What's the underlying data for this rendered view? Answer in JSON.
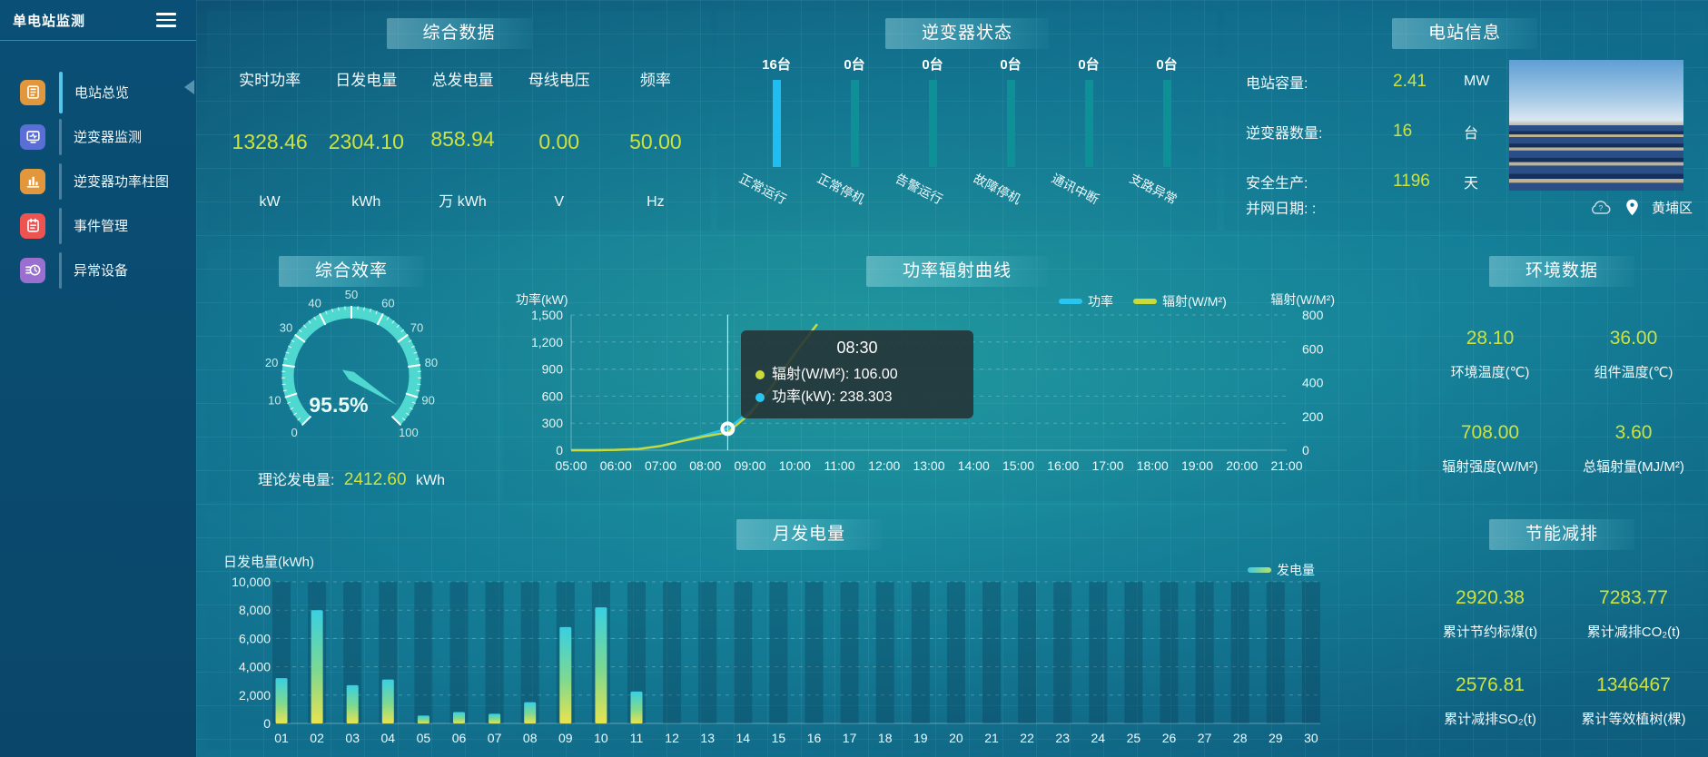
{
  "app": {
    "title": "单电站监测"
  },
  "sidebar": {
    "items": [
      {
        "label": "电站总览",
        "icon": "station-overview-icon",
        "color": "#e2973c",
        "active": true
      },
      {
        "label": "逆变器监测",
        "icon": "inverter-monitor-icon",
        "color": "#5a6fd6",
        "active": false
      },
      {
        "label": "逆变器功率柱图",
        "icon": "inverter-power-bars-icon",
        "color": "#e2973c",
        "active": false
      },
      {
        "label": "事件管理",
        "icon": "event-management-icon",
        "color": "#ef5350",
        "active": false
      },
      {
        "label": "异常设备",
        "icon": "abnormal-device-icon",
        "color": "#9b6fd0",
        "active": false
      }
    ]
  },
  "panels": {
    "summary": {
      "title": "综合数据",
      "metrics": [
        {
          "label": "实时功率",
          "value": "1328.46",
          "unit": "kW"
        },
        {
          "label": "日发电量",
          "value": "2304.10",
          "unit": "kWh"
        },
        {
          "label": "总发电量",
          "value": "858.94",
          "unit": "万 kWh"
        },
        {
          "label": "母线电压",
          "value": "0.00",
          "unit": "V"
        },
        {
          "label": "频率",
          "value": "50.00",
          "unit": "Hz"
        }
      ]
    },
    "inverter_status": {
      "title": "逆变器状态",
      "unit": "台",
      "items": [
        {
          "count": "16台",
          "label": "正常运行",
          "highlight": true
        },
        {
          "count": "0台",
          "label": "正常停机",
          "highlight": false
        },
        {
          "count": "0台",
          "label": "告警运行",
          "highlight": false
        },
        {
          "count": "0台",
          "label": "故障停机",
          "highlight": false
        },
        {
          "count": "0台",
          "label": "通讯中断",
          "highlight": false
        },
        {
          "count": "0台",
          "label": "支路异常",
          "highlight": false
        }
      ]
    },
    "station_info": {
      "title": "电站信息",
      "rows": [
        {
          "label": "电站容量:",
          "value": "2.41",
          "unit": "MW"
        },
        {
          "label": "逆变器数量:",
          "value": "16",
          "unit": "台"
        },
        {
          "label": "安全生产:",
          "value": "1196",
          "unit": "天"
        }
      ],
      "grid_date_label": "并网日期:  :",
      "location": "黄埔区"
    },
    "efficiency": {
      "title": "综合效率",
      "footer": {
        "label": "理论发电量:",
        "value": "2412.60",
        "unit": "kWh"
      }
    },
    "power_radiation": {
      "title": "功率辐射曲线",
      "ylabel_left": "功率(kW)",
      "ylabel_right": "辐射(W/M²)"
    },
    "environment": {
      "title": "环境数据",
      "metrics": [
        {
          "value": "28.10",
          "label": "环境温度(℃)"
        },
        {
          "value": "36.00",
          "label": "组件温度(℃)"
        },
        {
          "value": "708.00",
          "label": "辐射强度(W/M²)"
        },
        {
          "value": "3.60",
          "label": "总辐射量(MJ/M²)"
        }
      ]
    },
    "monthly_energy": {
      "title": "月发电量",
      "ylabel": "日发电量(kWh)",
      "legend": "发电量"
    },
    "energy_saving": {
      "title": "节能减排",
      "metrics": [
        {
          "value": "2920.38",
          "label": "累计节约标煤(t)"
        },
        {
          "value": "7283.77",
          "label": "累计减排CO₂(t)"
        },
        {
          "value": "2576.81",
          "label": "累计减排SO₂(t)"
        },
        {
          "value": "1346467",
          "label": "累计等效植树(棵)"
        }
      ]
    }
  },
  "colors": {
    "value_yellow": "#cde23e",
    "power_line": "#29c5f1",
    "radiation_line": "#c9da3a",
    "gauge_arc": "#4fd8cf",
    "status_highlight": "#1fbdf2",
    "status_normal": "#0e9196",
    "bar_top": "#39cfe2",
    "bar_bottom": "#e9e34e"
  },
  "chart_data": {
    "efficiency_gauge": {
      "type": "gauge",
      "min": 0,
      "max": 100,
      "tick_step": 10,
      "tick_labels": [
        "0",
        "10",
        "20",
        "30",
        "40",
        "50",
        "60",
        "70",
        "80",
        "90",
        "100"
      ],
      "value": 95.5,
      "value_text": "95.5%"
    },
    "power_radiation": {
      "type": "line",
      "x_hours": [
        5,
        5.5,
        6,
        6.5,
        7,
        7.5,
        8,
        8.5,
        9,
        9.5,
        10,
        10.5
      ],
      "x_range": [
        5,
        21
      ],
      "x_ticks": [
        "05:00",
        "06:00",
        "07:00",
        "08:00",
        "09:00",
        "10:00",
        "11:00",
        "12:00",
        "13:00",
        "14:00",
        "15:00",
        "16:00",
        "17:00",
        "18:00",
        "19:00",
        "20:00",
        "21:00"
      ],
      "series": [
        {
          "name": "功率",
          "color": "#29c5f1",
          "axis": "left",
          "values": [
            0,
            0,
            4,
            12,
            45,
            105,
            170,
            238.3,
            430,
            720,
            1080,
            1400
          ]
        },
        {
          "name": "辐射(W/M²)",
          "color": "#c9da3a",
          "axis": "right",
          "values": [
            0,
            0,
            2,
            7,
            25,
            55,
            82,
            106,
            215,
            380,
            570,
            745
          ]
        }
      ],
      "ylim_left": [
        0,
        1500
      ],
      "yticks_left": [
        0,
        300,
        600,
        900,
        1200,
        1500
      ],
      "ylim_right": [
        0,
        800
      ],
      "yticks_right": [
        0,
        200,
        400,
        600,
        800
      ],
      "legend": [
        {
          "label": "功率",
          "color": "#29c5f1"
        },
        {
          "label": "辐射(W/M²)",
          "color": "#c9da3a"
        }
      ],
      "tooltip": {
        "time": "08:30",
        "hover_x": 8.5,
        "rows": [
          {
            "color": "#c9da3a",
            "label": "辐射(W/M²)",
            "value": "106.00"
          },
          {
            "color": "#29c5f1",
            "label": "功率(kW)",
            "value": "238.303"
          }
        ]
      }
    },
    "monthly_energy": {
      "type": "bar",
      "categories": [
        "01",
        "02",
        "03",
        "04",
        "05",
        "06",
        "07",
        "08",
        "09",
        "10",
        "11",
        "12",
        "13",
        "14",
        "15",
        "16",
        "17",
        "18",
        "19",
        "20",
        "21",
        "22",
        "23",
        "24",
        "25",
        "26",
        "27",
        "28",
        "29",
        "30"
      ],
      "values": [
        3200,
        8000,
        2700,
        3100,
        550,
        800,
        680,
        1500,
        6800,
        8200,
        2250,
        0,
        0,
        0,
        0,
        0,
        0,
        0,
        0,
        0,
        0,
        0,
        0,
        0,
        0,
        0,
        0,
        0,
        0,
        0
      ],
      "ylim": [
        0,
        10000
      ],
      "yticks": [
        0,
        2000,
        4000,
        6000,
        8000,
        10000
      ],
      "legend": "发电量"
    },
    "inverter_status_bars": {
      "type": "bar",
      "categories": [
        "正常运行",
        "正常停机",
        "告警运行",
        "故障停机",
        "通讯中断",
        "支路异常"
      ],
      "values": [
        16,
        0,
        0,
        0,
        0,
        0
      ],
      "unit": "台"
    }
  }
}
